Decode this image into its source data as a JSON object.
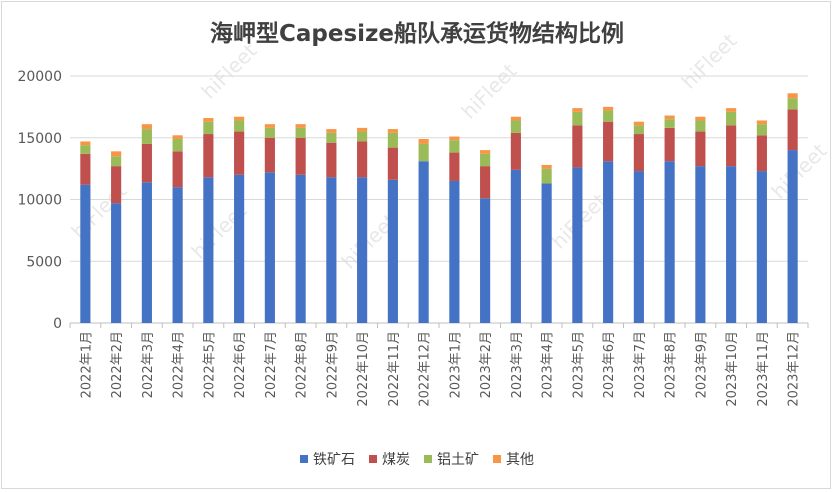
{
  "chart_data": {
    "type": "bar",
    "stacked": true,
    "title": "海岬型Capesize船队承运货物结构比例",
    "watermark": "hiFleet",
    "xlabel": "",
    "ylabel": "",
    "ylim": [
      0,
      20000
    ],
    "yticks": [
      "0",
      "5000",
      "10000",
      "15000",
      "20000"
    ],
    "grid": true,
    "legend_position": "bottom",
    "categories": [
      "2022年1月",
      "2022年2月",
      "2022年3月",
      "2022年4月",
      "2022年5月",
      "2022年6月",
      "2022年7月",
      "2022年8月",
      "2022年9月",
      "2022年10月",
      "2022年11月",
      "2022年12月",
      "2023年1月",
      "2023年2月",
      "2023年3月",
      "2023年4月",
      "2023年5月",
      "2023年6月",
      "2023年7月",
      "2023年8月",
      "2023年9月",
      "2023年10月",
      "2023年11月",
      "2023年12月"
    ],
    "series": [
      {
        "name": "铁矿石",
        "color": "#4472c4",
        "values": [
          11200,
          9700,
          11400,
          11000,
          11800,
          12000,
          12200,
          12000,
          11800,
          11800,
          11600,
          13100,
          11500,
          10100,
          12400,
          11300,
          12600,
          13100,
          12300,
          13100,
          12700,
          12700,
          12300,
          14000
        ]
      },
      {
        "name": "煤炭",
        "color": "#c0504d",
        "values": [
          2500,
          3000,
          3100,
          2900,
          3500,
          3500,
          2800,
          3000,
          2800,
          2900,
          2600,
          0,
          2300,
          2600,
          3000,
          0,
          3400,
          3200,
          3000,
          2700,
          2800,
          3300,
          2900,
          3300
        ]
      },
      {
        "name": "铝土矿",
        "color": "#9bbb59",
        "values": [
          700,
          800,
          1200,
          1000,
          1000,
          900,
          800,
          800,
          800,
          800,
          1200,
          1400,
          1000,
          1000,
          1000,
          1200,
          1100,
          900,
          700,
          700,
          900,
          1100,
          900,
          900
        ]
      },
      {
        "name": "其他",
        "color": "#f79646",
        "values": [
          300,
          400,
          400,
          300,
          300,
          300,
          300,
          300,
          300,
          300,
          300,
          400,
          300,
          300,
          300,
          300,
          300,
          300,
          300,
          300,
          300,
          300,
          300,
          400
        ]
      }
    ]
  }
}
